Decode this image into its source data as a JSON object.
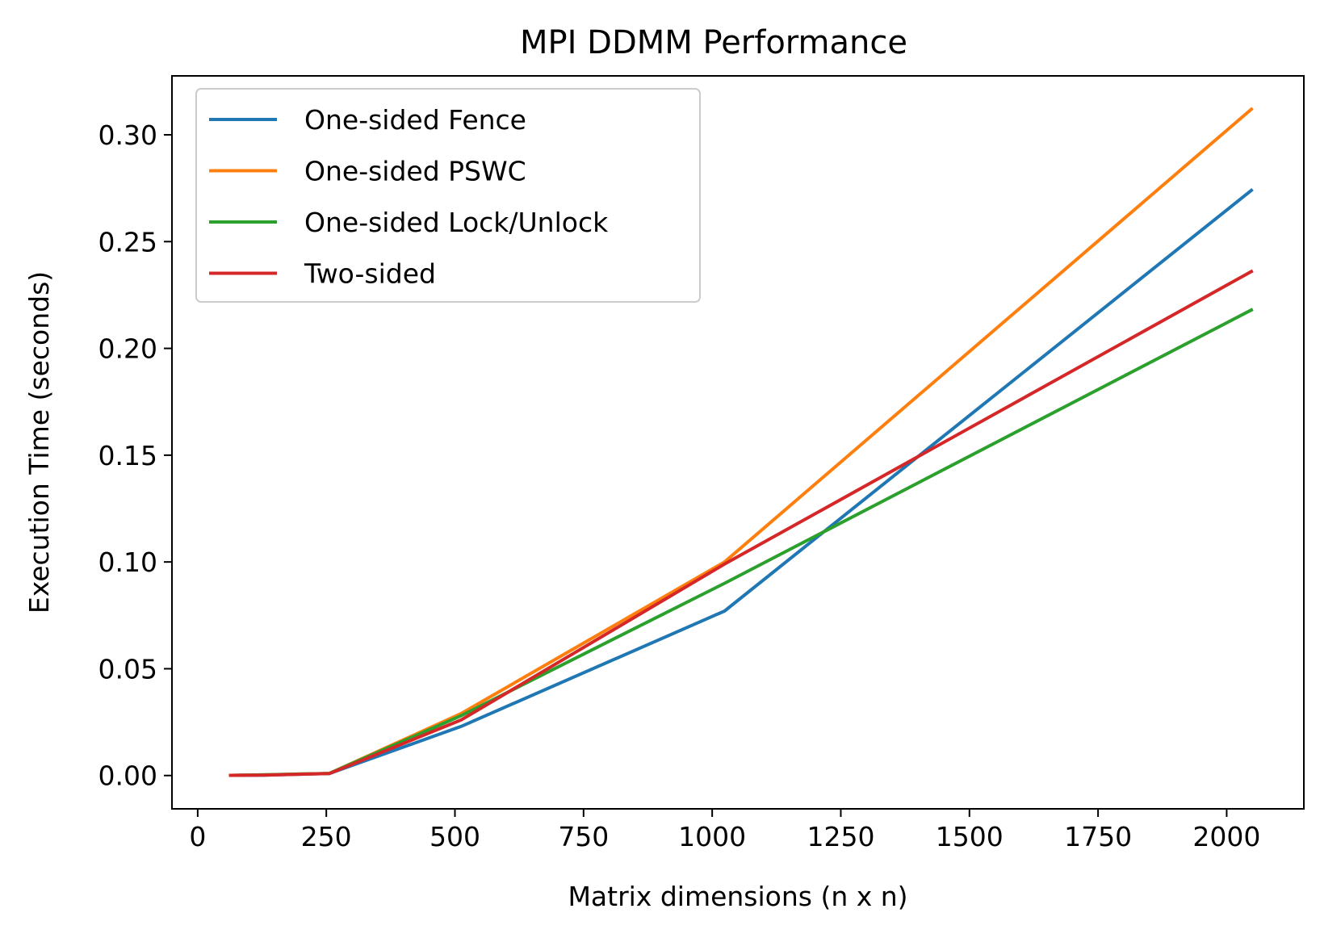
{
  "chart_data": {
    "type": "line",
    "title": "MPI DDMM Performance",
    "xlabel": "Matrix dimensions (n x n)",
    "ylabel": "Execution Time (seconds)",
    "xlim": [
      -50,
      2150
    ],
    "ylim": [
      -0.0156,
      0.3276
    ],
    "xticks": [
      0,
      250,
      500,
      750,
      1000,
      1250,
      1500,
      1750,
      2000
    ],
    "xtick_labels": [
      "0",
      "250",
      "500",
      "750",
      "1000",
      "1250",
      "1500",
      "1750",
      "2000"
    ],
    "yticks": [
      0.0,
      0.05,
      0.1,
      0.15,
      0.2,
      0.25,
      0.3
    ],
    "ytick_labels": [
      "0.00",
      "0.05",
      "0.10",
      "0.15",
      "0.20",
      "0.25",
      "0.30"
    ],
    "grid": false,
    "legend_position": "upper-left",
    "x": [
      64,
      128,
      256,
      512,
      1024,
      2048
    ],
    "series": [
      {
        "name": "One-sided Fence",
        "color": "#1f77b4",
        "values": [
          0.0001,
          0.0002,
          0.0009,
          0.023,
          0.077,
          0.274
        ]
      },
      {
        "name": "One-sided PSWC",
        "color": "#ff7f0e",
        "values": [
          0.0001,
          0.0003,
          0.001,
          0.029,
          0.1,
          0.312
        ]
      },
      {
        "name": "One-sided Lock/Unlock",
        "color": "#2ca02c",
        "values": [
          0.0001,
          0.0003,
          0.001,
          0.028,
          0.09,
          0.218
        ]
      },
      {
        "name": "Two-sided",
        "color": "#d62728",
        "values": [
          0.0001,
          0.0002,
          0.0009,
          0.026,
          0.099,
          0.236
        ]
      }
    ]
  }
}
